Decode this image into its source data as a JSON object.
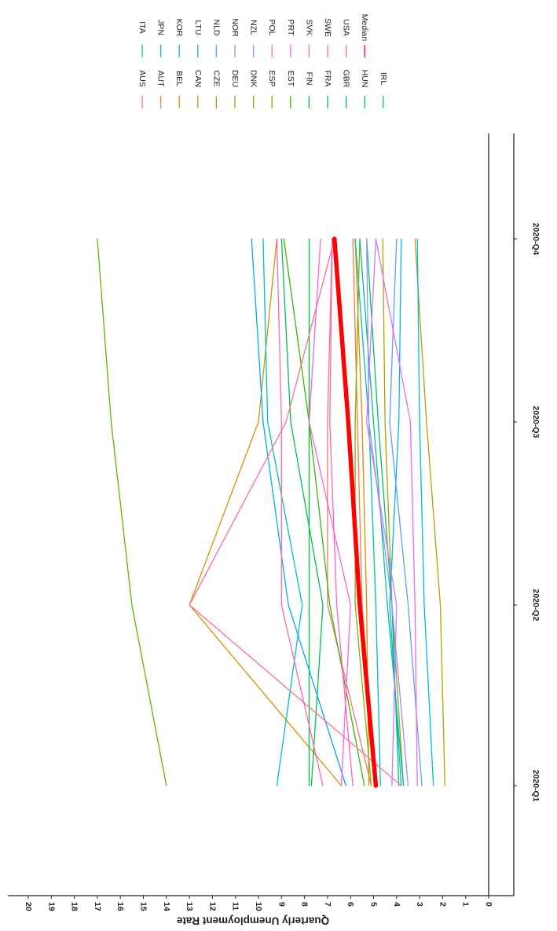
{
  "chart_data": {
    "type": "line",
    "orientation": "rotated-90-clockwise",
    "categories": [
      "2020-Q1",
      "2020-Q2",
      "2020-Q3",
      "2020-Q4"
    ],
    "ylabel": "Quarterly Unemployment Rate",
    "xlabel": "",
    "ylim": [
      0,
      20
    ],
    "yticks": [
      0,
      1,
      2,
      3,
      4,
      5,
      6,
      7,
      8,
      9,
      10,
      11,
      12,
      13,
      14,
      15,
      16,
      17,
      18,
      19,
      20
    ],
    "legend_position": "top",
    "series": [
      {
        "name": "AUS",
        "color": "#F8766D",
        "values": [
          5.1,
          7.0,
          7.0,
          6.8
        ]
      },
      {
        "name": "AUT",
        "color": "#EF7F49",
        "values": [
          4.9,
          5.5,
          5.7,
          5.9
        ]
      },
      {
        "name": "BEL",
        "color": "#E08B00",
        "values": [
          5.2,
          5.3,
          5.5,
          5.8
        ]
      },
      {
        "name": "CAN",
        "color": "#D29200",
        "values": [
          6.4,
          13.0,
          10.0,
          9.2
        ]
      },
      {
        "name": "CZE",
        "color": "#C09B00",
        "values": [
          1.9,
          2.1,
          2.7,
          3.2
        ]
      },
      {
        "name": "DEU",
        "color": "#AAA200",
        "values": [
          3.7,
          4.2,
          4.5,
          4.6
        ]
      },
      {
        "name": "DNK",
        "color": "#8EAA00",
        "values": [
          5.1,
          5.8,
          5.8,
          5.6
        ]
      },
      {
        "name": "ESP",
        "color": "#6BB100",
        "values": [
          14.0,
          15.5,
          16.4,
          17.0
        ]
      },
      {
        "name": "EST",
        "color": "#39B600",
        "values": [
          5.4,
          6.9,
          7.8,
          8.9
        ]
      },
      {
        "name": "FIN",
        "color": "#00BA38",
        "values": [
          7.8,
          7.8,
          7.8,
          7.8
        ]
      },
      {
        "name": "FRA",
        "color": "#00BC56",
        "values": [
          7.7,
          7.2,
          8.6,
          9.0
        ]
      },
      {
        "name": "GBR",
        "color": "#00BE6C",
        "values": [
          3.9,
          4.2,
          4.8,
          5.3
        ]
      },
      {
        "name": "HUN",
        "color": "#00C08B",
        "values": [
          3.7,
          4.4,
          5.0,
          5.6
        ]
      },
      {
        "name": "IRL",
        "color": "#00C1A6",
        "values": [
          4.7,
          4.9,
          5.2,
          5.8
        ]
      },
      {
        "name": "ITA",
        "color": "#00C0BC",
        "values": [
          9.2,
          8.1,
          9.6,
          9.8
        ]
      },
      {
        "name": "JPN",
        "color": "#00BBDA",
        "values": [
          2.4,
          2.8,
          3.0,
          3.1
        ]
      },
      {
        "name": "KOR",
        "color": "#00B4EF",
        "values": [
          3.8,
          4.3,
          3.9,
          3.8
        ]
      },
      {
        "name": "LTU",
        "color": "#00A9FF",
        "values": [
          6.2,
          8.7,
          9.8,
          10.3
        ]
      },
      {
        "name": "NLD",
        "color": "#619CFF",
        "values": [
          2.9,
          3.5,
          4.3,
          4.0
        ]
      },
      {
        "name": "NOR",
        "color": "#9590FF",
        "values": [
          3.5,
          4.2,
          5.2,
          5.3
        ]
      },
      {
        "name": "NZL",
        "color": "#C77CFF",
        "values": [
          4.2,
          4.0,
          5.3,
          4.9
        ]
      },
      {
        "name": "POL",
        "color": "#E76BF3",
        "values": [
          3.1,
          3.2,
          3.4,
          4.9
        ]
      },
      {
        "name": "PRT",
        "color": "#F564E3",
        "values": [
          6.4,
          6.0,
          7.8,
          7.3
        ]
      },
      {
        "name": "SVK",
        "color": "#FF61C3",
        "values": [
          5.9,
          6.6,
          6.9,
          6.8
        ]
      },
      {
        "name": "SWE",
        "color": "#FF64B0",
        "values": [
          7.2,
          9.0,
          9.0,
          9.2
        ]
      },
      {
        "name": "USA",
        "color": "#FF6C91",
        "values": [
          3.8,
          13.0,
          8.8,
          6.7
        ]
      },
      {
        "name": "Median",
        "color": "#FF0000",
        "emphasis": true,
        "values": [
          4.9,
          5.6,
          6.1,
          6.7
        ]
      }
    ]
  }
}
